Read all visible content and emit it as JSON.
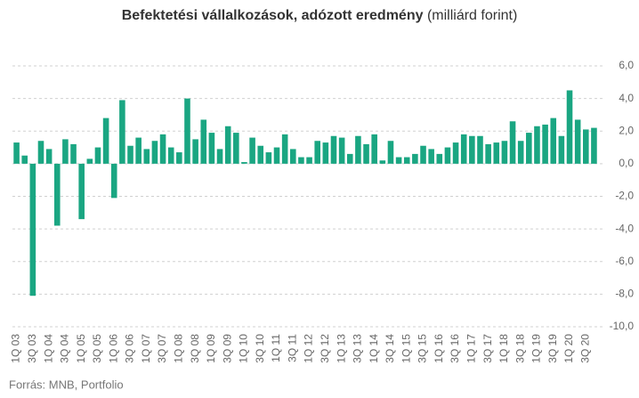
{
  "chart_data": {
    "type": "bar",
    "title": "Befektetési vállalkozások, adózott eredmény",
    "subtitle": "(milliárd forint)",
    "source": "Forrás: MNB, Portfolio",
    "categories": [
      "1Q 03",
      null,
      "3Q 03",
      null,
      "1Q 04",
      null,
      "3Q 04",
      null,
      "1Q 05",
      null,
      "3Q 05",
      null,
      "1Q 06",
      null,
      "3Q 06",
      null,
      "1Q 07",
      null,
      "3Q 07",
      null,
      "1Q 08",
      null,
      "3Q 08",
      null,
      "1Q 09",
      null,
      "3Q 09",
      null,
      "1Q 10",
      null,
      "3Q 10",
      null,
      "1Q 11",
      null,
      "3Q 11",
      null,
      "1Q 12",
      null,
      "3Q 12",
      null,
      "1Q 13",
      null,
      "3Q 13",
      null,
      "1Q 14",
      null,
      "3Q 14",
      null,
      "1Q 15",
      null,
      "3Q 15",
      null,
      "1Q 16",
      null,
      "3Q 16",
      null,
      "1Q 17",
      null,
      "3Q 17",
      null,
      "1Q 18",
      null,
      "3Q 18",
      null,
      "1Q 19",
      null,
      "3Q 19",
      null,
      "1Q 20",
      null,
      "3Q 20",
      null
    ],
    "values": [
      1.3,
      0.5,
      -8.1,
      1.4,
      0.9,
      -3.8,
      1.5,
      1.2,
      -3.4,
      0.3,
      1.0,
      2.8,
      -2.1,
      3.9,
      1.1,
      1.6,
      0.9,
      1.4,
      1.8,
      1.0,
      0.7,
      4.0,
      1.5,
      2.7,
      1.9,
      0.9,
      2.3,
      1.9,
      0.1,
      1.6,
      1.1,
      0.7,
      1.0,
      1.8,
      0.9,
      0.4,
      0.4,
      1.4,
      1.3,
      1.7,
      1.6,
      0.6,
      1.7,
      1.2,
      1.8,
      0.2,
      1.4,
      0.4,
      0.4,
      0.6,
      1.1,
      0.9,
      0.6,
      1.0,
      1.3,
      1.8,
      1.7,
      1.7,
      1.2,
      1.3,
      1.4,
      2.6,
      1.4,
      1.9,
      2.3,
      2.4,
      2.8,
      1.7,
      4.5,
      2.7,
      2.1,
      2.2
    ],
    "color": "#1aa682",
    "ylim": [
      -10,
      6
    ],
    "yticks": [
      {
        "value": 6,
        "label": "6,0"
      },
      {
        "value": 4,
        "label": "4,0"
      },
      {
        "value": 2,
        "label": "2,0"
      },
      {
        "value": 0,
        "label": "0,0"
      },
      {
        "value": -2,
        "label": "-2,0"
      },
      {
        "value": -4,
        "label": "-4,0"
      },
      {
        "value": -6,
        "label": "-6,0"
      },
      {
        "value": -8,
        "label": "-8,0"
      },
      {
        "value": -10,
        "label": "-10,0"
      }
    ],
    "grid": true
  }
}
